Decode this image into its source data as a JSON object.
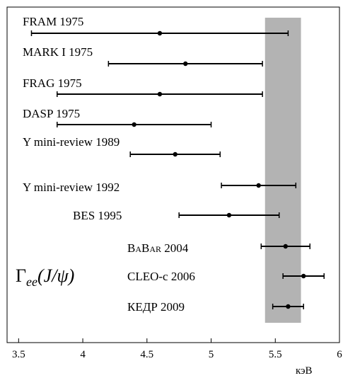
{
  "chart_data": {
    "type": "errorbar",
    "categories": [
      "FRAM 1975",
      "MARK I 1975",
      "FRAG 1975",
      "DASP 1975",
      "Υ mini-review 1989",
      "Υ mini-review 1992",
      "BES 1995",
      "BaBar 2004",
      "CLEO-c 2006",
      "КЕДР 2009"
    ],
    "values": [
      4.6,
      4.8,
      4.6,
      4.4,
      4.72,
      5.37,
      5.14,
      5.58,
      5.72,
      5.6
    ],
    "errors": [
      1.0,
      0.6,
      0.8,
      0.6,
      0.35,
      0.29,
      0.39,
      0.19,
      0.16,
      0.12
    ],
    "color": "#000000",
    "band": [
      5.42,
      5.7
    ],
    "band_color": "#b3b3b3",
    "annotation": {
      "symbol": "Γ",
      "subscript": "ee",
      "argument": "(J/ψ)"
    },
    "xlabel": "кэВ",
    "xlim": [
      3.41,
      6.0
    ],
    "xticks": [
      3.5,
      4,
      4.5,
      5,
      5.5,
      6
    ]
  }
}
